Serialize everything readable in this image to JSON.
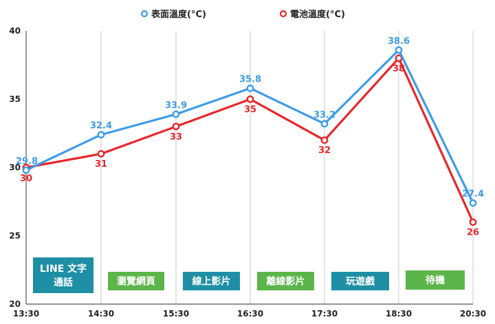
{
  "chart_data": {
    "type": "line",
    "x": [
      "13:30",
      "14:30",
      "15:30",
      "16:30",
      "17:30",
      "18:30",
      "20:30"
    ],
    "ylim": [
      20,
      40
    ],
    "yticks": [
      20,
      25,
      30,
      35,
      40
    ],
    "grid": "vertical",
    "legend_position": "top",
    "series": [
      {
        "name": "表面溫度(°C)",
        "color": "#3d9be9",
        "values": [
          29.8,
          32.4,
          33.9,
          35.8,
          33.2,
          38.6,
          27.4
        ],
        "labels": [
          "29.8",
          "32.4",
          "33.9",
          "35.8",
          "33.2",
          "38.6",
          "27.4"
        ]
      },
      {
        "name": "電池溫度(°C)",
        "color": "#e8262a",
        "values": [
          30,
          31,
          33,
          35,
          32,
          38,
          26
        ],
        "labels": [
          "30",
          "31",
          "33",
          "35",
          "32",
          "38",
          "26"
        ]
      }
    ],
    "activities": [
      {
        "lines": [
          "LINE 文字",
          "通話"
        ],
        "color": "#1e8fa5"
      },
      {
        "lines": [
          "瀏覽網頁"
        ],
        "color": "#5cb54a"
      },
      {
        "lines": [
          "線上影片"
        ],
        "color": "#1e8fa5"
      },
      {
        "lines": [
          "離線影片"
        ],
        "color": "#5cb54a"
      },
      {
        "lines": [
          "玩遊戲"
        ],
        "color": "#1e8fa5"
      },
      {
        "lines": [
          "待機"
        ],
        "color": "#5cb54a"
      }
    ]
  }
}
